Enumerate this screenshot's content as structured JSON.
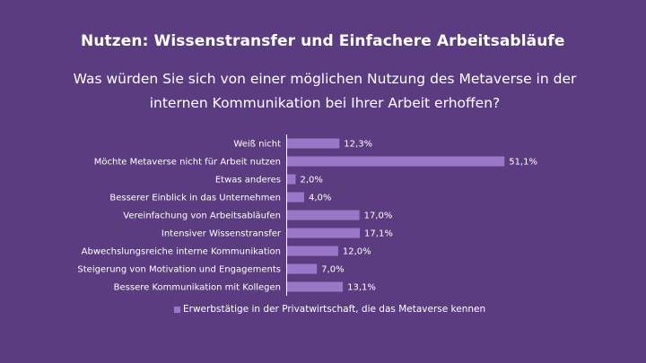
{
  "chart_data": {
    "type": "bar",
    "orientation": "horizontal",
    "title": "Nutzen: Wissenstransfer und Einfachere Arbeitsabläufe",
    "subtitle": [
      "Was würden Sie sich von einer möglichen Nutzung des Metaverse in der",
      "internen Kommunikation bei Ihrer Arbeit erhoffen?"
    ],
    "categories": [
      "Weiß nicht",
      "Möchte Metaverse nicht für Arbeit nutzen",
      "Etwas anderes",
      "Besserer Einblick in das Unternehmen",
      "Vereinfachung von Arbeitsabläufen",
      "Intensiver Wissenstransfer",
      "Abwechslungsreiche interne Kommunikation",
      "Steigerung von Motivation und Engagements",
      "Bessere Kommunikation mit Kollegen"
    ],
    "series": [
      {
        "name": "Erwerbstätige in der Privatwirtschaft, die das Metaverse kennen",
        "values": [
          12.3,
          51.1,
          2.0,
          4.0,
          17.0,
          17.1,
          12.0,
          7.0,
          13.1
        ]
      }
    ],
    "data_labels": [
      "12,3%",
      "51,1%",
      "2,0%",
      "4,0%",
      "17,0%",
      "17,1%",
      "12,0%",
      "7,0%",
      "13,1%"
    ],
    "unit": "%",
    "grid": false,
    "legend": "bottom",
    "colors": {
      "background": "#5b3c80",
      "bar": "#9b77c9",
      "text": "#ffffff"
    }
  }
}
